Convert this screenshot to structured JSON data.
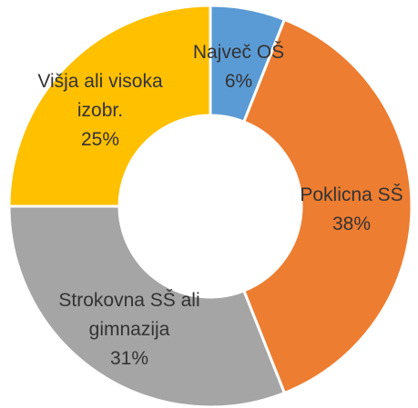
{
  "chart_data": {
    "type": "donut",
    "categories": [
      "Največ OŠ",
      "Poklicna SŠ",
      "Strokovna SŠ ali gimnazija",
      "Višja ali visoka izobr."
    ],
    "values": [
      6,
      38,
      31,
      25
    ],
    "value_labels": [
      "6%",
      "38%",
      "31%",
      "25%"
    ],
    "colors": [
      "#5b9bd5",
      "#ed7d31",
      "#a5a5a5",
      "#ffc000"
    ]
  }
}
